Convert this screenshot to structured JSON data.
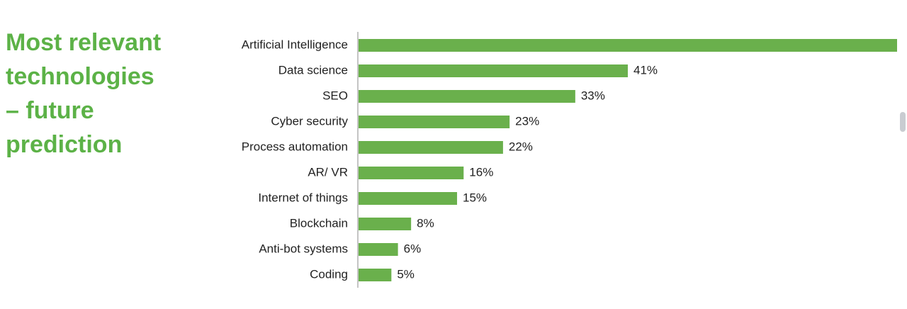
{
  "chart_data": {
    "type": "bar",
    "orientation": "horizontal",
    "title": "Most relevant technologies – future prediction",
    "categories": [
      "Artificial Intelligence",
      "Data science",
      "SEO",
      "Cyber security",
      "Process automation",
      "AR/ VR",
      "Internet of things",
      "Blockchain",
      "Anti-bot systems",
      "Coding"
    ],
    "values": [
      82,
      41,
      33,
      23,
      22,
      16,
      15,
      8,
      6,
      5
    ],
    "value_labels": [
      null,
      "41%",
      "33%",
      "23%",
      "22%",
      "16%",
      "15%",
      "8%",
      "6%",
      "5%"
    ],
    "color": "#6ab04c"
  }
}
